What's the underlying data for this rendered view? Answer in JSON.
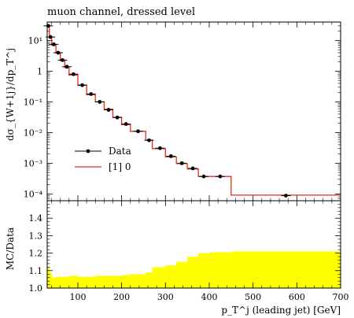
{
  "chart_data": [
    {
      "type": "line",
      "title": "muon channel, dressed level",
      "ylabel": "dσ_{W+1j}/dp_T^j",
      "xlabel": "",
      "xlim": [
        30,
        700
      ],
      "ylim": [
        6e-05,
        40
      ],
      "yscale": "log",
      "ytick_labels": [
        "10¹",
        "1",
        "10⁻¹",
        "10⁻²",
        "10⁻³",
        "10⁻⁴"
      ],
      "legend": {
        "placement": "center-left",
        "entries": [
          "Data",
          "[1] 0"
        ]
      },
      "series": [
        {
          "name": "Data",
          "style": "points",
          "x": [
            32.5,
            37.5,
            45,
            55,
            65,
            75,
            90,
            110,
            130,
            150,
            170,
            190,
            210,
            237.5,
            262.5,
            287.5,
            312.5,
            337.5,
            362.5,
            387.5,
            425,
            575
          ],
          "y": [
            30,
            13,
            7.5,
            4.0,
            2.3,
            1.4,
            0.8,
            0.35,
            0.18,
            0.1,
            0.055,
            0.031,
            0.019,
            0.011,
            0.0056,
            0.0031,
            0.0017,
            0.001,
            0.00068,
            0.00037,
            0.00037,
            8.8e-05
          ]
        },
        {
          "name": "[1] 0",
          "style": "step",
          "color": "#e32d1d",
          "edges": [
            30,
            35,
            40,
            50,
            60,
            70,
            80,
            100,
            120,
            140,
            160,
            180,
            200,
            220,
            255,
            270,
            300,
            325,
            350,
            375,
            400,
            450,
            700
          ],
          "values": [
            30,
            12,
            7.0,
            3.9,
            2.2,
            1.3,
            0.75,
            0.35,
            0.17,
            0.1,
            0.058,
            0.031,
            0.018,
            0.011,
            0.0057,
            0.003,
            0.0016,
            0.00097,
            0.00065,
            0.00037,
            0.00037,
            9.1e-05
          ]
        }
      ]
    },
    {
      "type": "area",
      "title": "",
      "ylabel": "MC/Data",
      "xlabel": "p_T^j (leading jet) [GeV]",
      "xlim": [
        30,
        700
      ],
      "ylim": [
        1.0,
        1.5
      ],
      "yticks": [
        "1.0",
        "1.1",
        "1.2",
        "1.3",
        "1.4"
      ],
      "xticks": [
        "100",
        "200",
        "300",
        "400",
        "500",
        "600",
        "700"
      ],
      "band_color": "#ffff00",
      "band": {
        "edges": [
          30,
          35,
          40,
          50,
          60,
          80,
          100,
          120,
          140,
          160,
          180,
          200,
          220,
          255,
          270,
          300,
          325,
          350,
          375,
          400,
          450,
          700
        ],
        "upper": [
          1.12,
          1.085,
          1.06,
          1.065,
          1.065,
          1.07,
          1.065,
          1.065,
          1.07,
          1.07,
          1.07,
          1.075,
          1.08,
          1.09,
          1.12,
          1.13,
          1.15,
          1.18,
          1.2,
          1.205,
          1.21
        ],
        "lower": [
          1.0,
          1.0,
          1.0,
          1.0,
          1.0,
          1.0,
          1.0,
          1.0,
          1.0,
          1.0,
          1.0,
          1.0,
          1.0,
          1.0,
          1.0,
          1.0,
          1.0,
          1.0,
          1.0,
          1.0,
          1.0
        ]
      },
      "reference_line": 1.0
    }
  ]
}
